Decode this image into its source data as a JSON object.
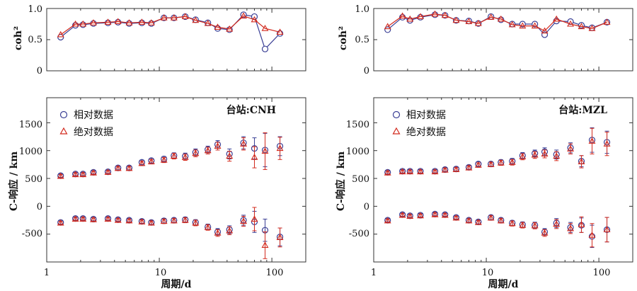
{
  "colors": {
    "relative": "#3a3f95",
    "absolute": "#d22a1e",
    "axis": "#333333"
  },
  "legend": {
    "relative": "相对数据",
    "absolute": "绝对数据"
  },
  "chart_data": [
    {
      "id": "coh-cnh",
      "type": "line",
      "xscale": "log",
      "xlim": [
        1,
        200
      ],
      "ylim": [
        0,
        1.0
      ],
      "ylabel": "coh²",
      "yticks": [
        0,
        0.5,
        1.0
      ],
      "ytick_labels": [
        "0",
        "0.5",
        "1.0"
      ],
      "grid": false,
      "series": [
        {
          "name": "相对数据",
          "marker": "circle",
          "x": [
            1.33,
            1.8,
            2.1,
            2.6,
            3.5,
            4.3,
            5.4,
            7,
            8.5,
            11,
            13.5,
            17,
            21,
            27,
            33,
            42,
            56,
            70,
            87,
            118
          ],
          "y": [
            0.54,
            0.73,
            0.74,
            0.76,
            0.77,
            0.78,
            0.76,
            0.77,
            0.76,
            0.85,
            0.85,
            0.87,
            0.82,
            0.77,
            0.68,
            0.66,
            0.9,
            0.87,
            0.35,
            0.6
          ]
        },
        {
          "name": "绝对数据",
          "marker": "triangle",
          "x": [
            1.33,
            1.8,
            2.1,
            2.6,
            3.5,
            4.3,
            5.4,
            7,
            8.5,
            11,
            13.5,
            17,
            21,
            27,
            33,
            42,
            56,
            70,
            87,
            118
          ],
          "y": [
            0.58,
            0.75,
            0.75,
            0.77,
            0.78,
            0.79,
            0.77,
            0.78,
            0.77,
            0.85,
            0.85,
            0.87,
            0.81,
            0.76,
            0.7,
            0.67,
            0.88,
            0.82,
            0.68,
            0.62
          ]
        }
      ]
    },
    {
      "id": "coh-mzl",
      "type": "line",
      "xscale": "log",
      "xlim": [
        1,
        200
      ],
      "ylim": [
        0,
        1.0
      ],
      "ylabel": "coh²",
      "yticks": [
        0,
        0.5,
        1.0
      ],
      "ytick_labels": [
        "0",
        "0.5",
        "1.0"
      ],
      "grid": false,
      "series": [
        {
          "name": "相对数据",
          "marker": "circle",
          "x": [
            1.33,
            1.8,
            2.1,
            2.6,
            3.5,
            4.3,
            5.4,
            7,
            8.5,
            11,
            13.5,
            17,
            21,
            27,
            33,
            42,
            56,
            70,
            87,
            118
          ],
          "y": [
            0.66,
            0.86,
            0.81,
            0.86,
            0.9,
            0.89,
            0.81,
            0.8,
            0.76,
            0.87,
            0.82,
            0.75,
            0.75,
            0.75,
            0.58,
            0.8,
            0.79,
            0.73,
            0.69,
            0.78
          ]
        },
        {
          "name": "绝对数据",
          "marker": "triangle",
          "x": [
            1.33,
            1.8,
            2.1,
            2.6,
            3.5,
            4.3,
            5.4,
            7,
            8.5,
            11,
            13.5,
            17,
            21,
            27,
            33,
            42,
            56,
            70,
            87,
            118
          ],
          "y": [
            0.71,
            0.88,
            0.83,
            0.87,
            0.91,
            0.89,
            0.81,
            0.79,
            0.76,
            0.86,
            0.83,
            0.74,
            0.72,
            0.72,
            0.64,
            0.83,
            0.75,
            0.71,
            0.68,
            0.78
          ]
        }
      ]
    },
    {
      "id": "cresp-cnh",
      "type": "scatter",
      "xscale": "log",
      "xlim": [
        1,
        200
      ],
      "ylim": [
        -1000,
        1950
      ],
      "ylabel": "C-响应 / km",
      "xlabel": "周期/d",
      "xticks": [
        1,
        10,
        100
      ],
      "xtick_labels": [
        "1",
        "10",
        "100"
      ],
      "yticks": [
        -500,
        0,
        500,
        1000,
        1500
      ],
      "ytick_labels": [
        "-500",
        "0",
        "500",
        "1000",
        "1500"
      ],
      "station": "台站:CNH",
      "legend_position": "top-left",
      "grid": false,
      "series": [
        {
          "name": "相对数据",
          "marker": "circle",
          "x": [
            1.33,
            1.8,
            2.1,
            2.6,
            3.5,
            4.3,
            5.4,
            7,
            8.5,
            11,
            13.5,
            17,
            21,
            27,
            33,
            42,
            56,
            70,
            87,
            118
          ],
          "y": [
            550,
            580,
            580,
            610,
            620,
            690,
            690,
            790,
            820,
            850,
            910,
            900,
            970,
            1020,
            1110,
            940,
            1140,
            1040,
            1010,
            1080
          ],
          "err": [
            30,
            30,
            30,
            30,
            30,
            35,
            35,
            40,
            40,
            45,
            50,
            55,
            60,
            60,
            70,
            90,
            110,
            190,
            300,
            170
          ]
        },
        {
          "name": "绝对数据",
          "marker": "triangle",
          "x": [
            1.33,
            1.8,
            2.1,
            2.6,
            3.5,
            4.3,
            5.4,
            7,
            8.5,
            11,
            13.5,
            17,
            21,
            27,
            33,
            42,
            56,
            70,
            87,
            118
          ],
          "y": [
            540,
            570,
            570,
            600,
            610,
            680,
            680,
            770,
            800,
            830,
            900,
            880,
            950,
            1000,
            1080,
            900,
            1120,
            880,
            990,
            1040
          ],
          "err": [
            30,
            30,
            30,
            30,
            30,
            35,
            35,
            40,
            40,
            45,
            50,
            55,
            60,
            60,
            70,
            90,
            110,
            190,
            330,
            200
          ]
        },
        {
          "name": "相对数据",
          "marker": "circle",
          "x": [
            1.33,
            1.8,
            2.1,
            2.6,
            3.5,
            4.3,
            5.4,
            7,
            8.5,
            11,
            13.5,
            17,
            21,
            27,
            33,
            42,
            56,
            70,
            87,
            118
          ],
          "y": [
            -290,
            -220,
            -220,
            -230,
            -220,
            -240,
            -250,
            -270,
            -290,
            -260,
            -250,
            -240,
            -290,
            -370,
            -460,
            -420,
            -250,
            -280,
            -430,
            -550
          ],
          "err": [
            30,
            30,
            30,
            30,
            30,
            30,
            30,
            35,
            35,
            40,
            40,
            45,
            50,
            50,
            60,
            70,
            90,
            190,
            200,
            160
          ]
        },
        {
          "name": "绝对数据",
          "marker": "triangle",
          "x": [
            1.33,
            1.8,
            2.1,
            2.6,
            3.5,
            4.3,
            5.4,
            7,
            8.5,
            11,
            13.5,
            17,
            21,
            27,
            33,
            42,
            56,
            70,
            87,
            118
          ],
          "y": [
            -300,
            -230,
            -230,
            -240,
            -230,
            -250,
            -260,
            -280,
            -300,
            -270,
            -260,
            -250,
            -300,
            -380,
            -480,
            -440,
            -270,
            -230,
            -700,
            -560
          ],
          "err": [
            30,
            30,
            30,
            30,
            30,
            30,
            30,
            35,
            35,
            40,
            40,
            45,
            50,
            50,
            60,
            70,
            90,
            210,
            240,
            170
          ]
        }
      ]
    },
    {
      "id": "cresp-mzl",
      "type": "scatter",
      "xscale": "log",
      "xlim": [
        1,
        200
      ],
      "ylim": [
        -1000,
        1950
      ],
      "ylabel": "C-响应 / km",
      "xlabel": "周期/d",
      "xticks": [
        1,
        10,
        100
      ],
      "xtick_labels": [
        "1",
        "10",
        "100"
      ],
      "yticks": [
        -500,
        0,
        500,
        1000,
        1500
      ],
      "ytick_labels": [
        "-500",
        "0",
        "500",
        "1000",
        "1500"
      ],
      "station": "台站:MZL",
      "legend_position": "top-left",
      "grid": false,
      "series": [
        {
          "name": "相对数据",
          "marker": "circle",
          "x": [
            1.33,
            1.8,
            2.1,
            2.6,
            3.5,
            4.3,
            5.4,
            7,
            8.5,
            11,
            13.5,
            17,
            21,
            27,
            33,
            42,
            56,
            70,
            87,
            118
          ],
          "y": [
            610,
            630,
            630,
            630,
            630,
            660,
            670,
            700,
            760,
            760,
            790,
            810,
            910,
            950,
            980,
            930,
            1050,
            810,
            1190,
            1150
          ],
          "err": [
            30,
            30,
            30,
            30,
            30,
            35,
            35,
            35,
            40,
            40,
            45,
            50,
            55,
            60,
            70,
            80,
            90,
            100,
            220,
            200
          ]
        },
        {
          "name": "绝对数据",
          "marker": "triangle",
          "x": [
            1.33,
            1.8,
            2.1,
            2.6,
            3.5,
            4.3,
            5.4,
            7,
            8.5,
            11,
            13.5,
            17,
            21,
            27,
            33,
            42,
            56,
            70,
            87,
            118
          ],
          "y": [
            600,
            620,
            620,
            620,
            620,
            650,
            660,
            690,
            740,
            750,
            780,
            790,
            890,
            920,
            940,
            900,
            1030,
            800,
            1170,
            1120
          ],
          "err": [
            30,
            30,
            30,
            30,
            30,
            35,
            35,
            35,
            40,
            40,
            45,
            50,
            55,
            60,
            70,
            80,
            90,
            110,
            230,
            210
          ]
        },
        {
          "name": "相对数据",
          "marker": "circle",
          "x": [
            1.33,
            1.8,
            2.1,
            2.6,
            3.5,
            4.3,
            5.4,
            7,
            8.5,
            11,
            13.5,
            17,
            21,
            27,
            33,
            42,
            56,
            70,
            87,
            118
          ],
          "y": [
            -250,
            -150,
            -170,
            -160,
            -140,
            -150,
            -200,
            -250,
            -280,
            -200,
            -250,
            -300,
            -330,
            -340,
            -460,
            -300,
            -380,
            -340,
            -540,
            -420
          ],
          "err": [
            30,
            30,
            30,
            30,
            30,
            30,
            30,
            35,
            35,
            40,
            40,
            45,
            50,
            55,
            60,
            80,
            90,
            130,
            200,
            220
          ]
        },
        {
          "name": "绝对数据",
          "marker": "triangle",
          "x": [
            1.33,
            1.8,
            2.1,
            2.6,
            3.5,
            4.3,
            5.4,
            7,
            8.5,
            11,
            13.5,
            17,
            21,
            27,
            33,
            42,
            56,
            70,
            87,
            118
          ],
          "y": [
            -260,
            -160,
            -180,
            -170,
            -150,
            -160,
            -210,
            -260,
            -290,
            -210,
            -260,
            -310,
            -340,
            -350,
            -480,
            -320,
            -400,
            -330,
            -520,
            -420
          ],
          "err": [
            30,
            30,
            30,
            30,
            30,
            30,
            30,
            35,
            35,
            40,
            40,
            45,
            50,
            55,
            60,
            80,
            90,
            140,
            210,
            220
          ]
        }
      ]
    }
  ]
}
